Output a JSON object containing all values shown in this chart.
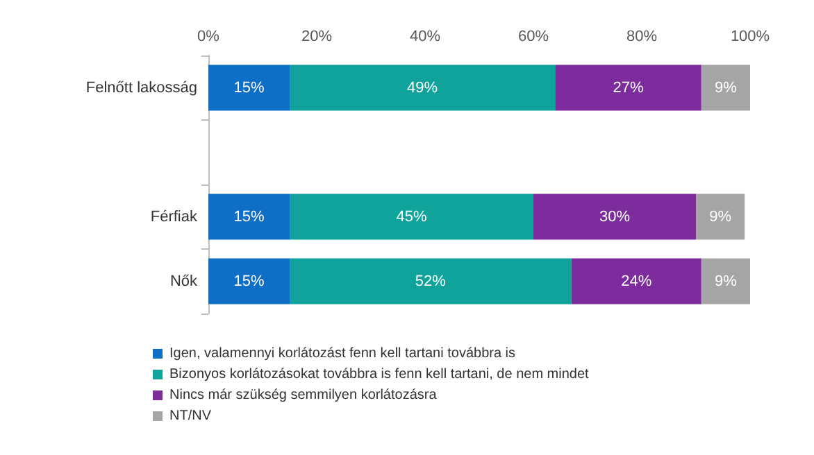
{
  "chart_data": {
    "type": "bar",
    "orientation": "horizontal",
    "stacked": true,
    "categories": [
      "Felnőtt lakosság",
      null,
      "Férfiak",
      "Nők"
    ],
    "series": [
      {
        "name": "Igen, valamennyi korlátozást fenn kell tartani továbbra is",
        "color": "#0f6fc6",
        "values": [
          15,
          null,
          15,
          15
        ],
        "value_labels": [
          "15%",
          null,
          "15%",
          "15%"
        ]
      },
      {
        "name": "Bizonyos korlátozásokat továbbra is fenn kell tartani, de nem mindet",
        "color": "#0fa39b",
        "values": [
          49,
          null,
          45,
          52
        ],
        "value_labels": [
          "49%",
          null,
          "45%",
          "52%"
        ]
      },
      {
        "name": "Nincs már szükség semmilyen korlátozásra",
        "color": "#7c2c9c",
        "values": [
          27,
          null,
          30,
          24
        ],
        "value_labels": [
          "27%",
          null,
          "30%",
          "24%"
        ]
      },
      {
        "name": "NT/NV",
        "color": "#a5a5a5",
        "values": [
          9,
          null,
          9,
          9
        ],
        "value_labels": [
          "9%",
          null,
          "9%",
          "9%"
        ]
      }
    ],
    "xlim": [
      0,
      100
    ],
    "xticks": [
      {
        "value": 0,
        "label": "0%"
      },
      {
        "value": 20,
        "label": "20%"
      },
      {
        "value": 40,
        "label": "40%"
      },
      {
        "value": 60,
        "label": "60%"
      },
      {
        "value": 80,
        "label": "80%"
      },
      {
        "value": 100,
        "label": "100%"
      }
    ],
    "grid": false,
    "legend": "bottom left"
  }
}
